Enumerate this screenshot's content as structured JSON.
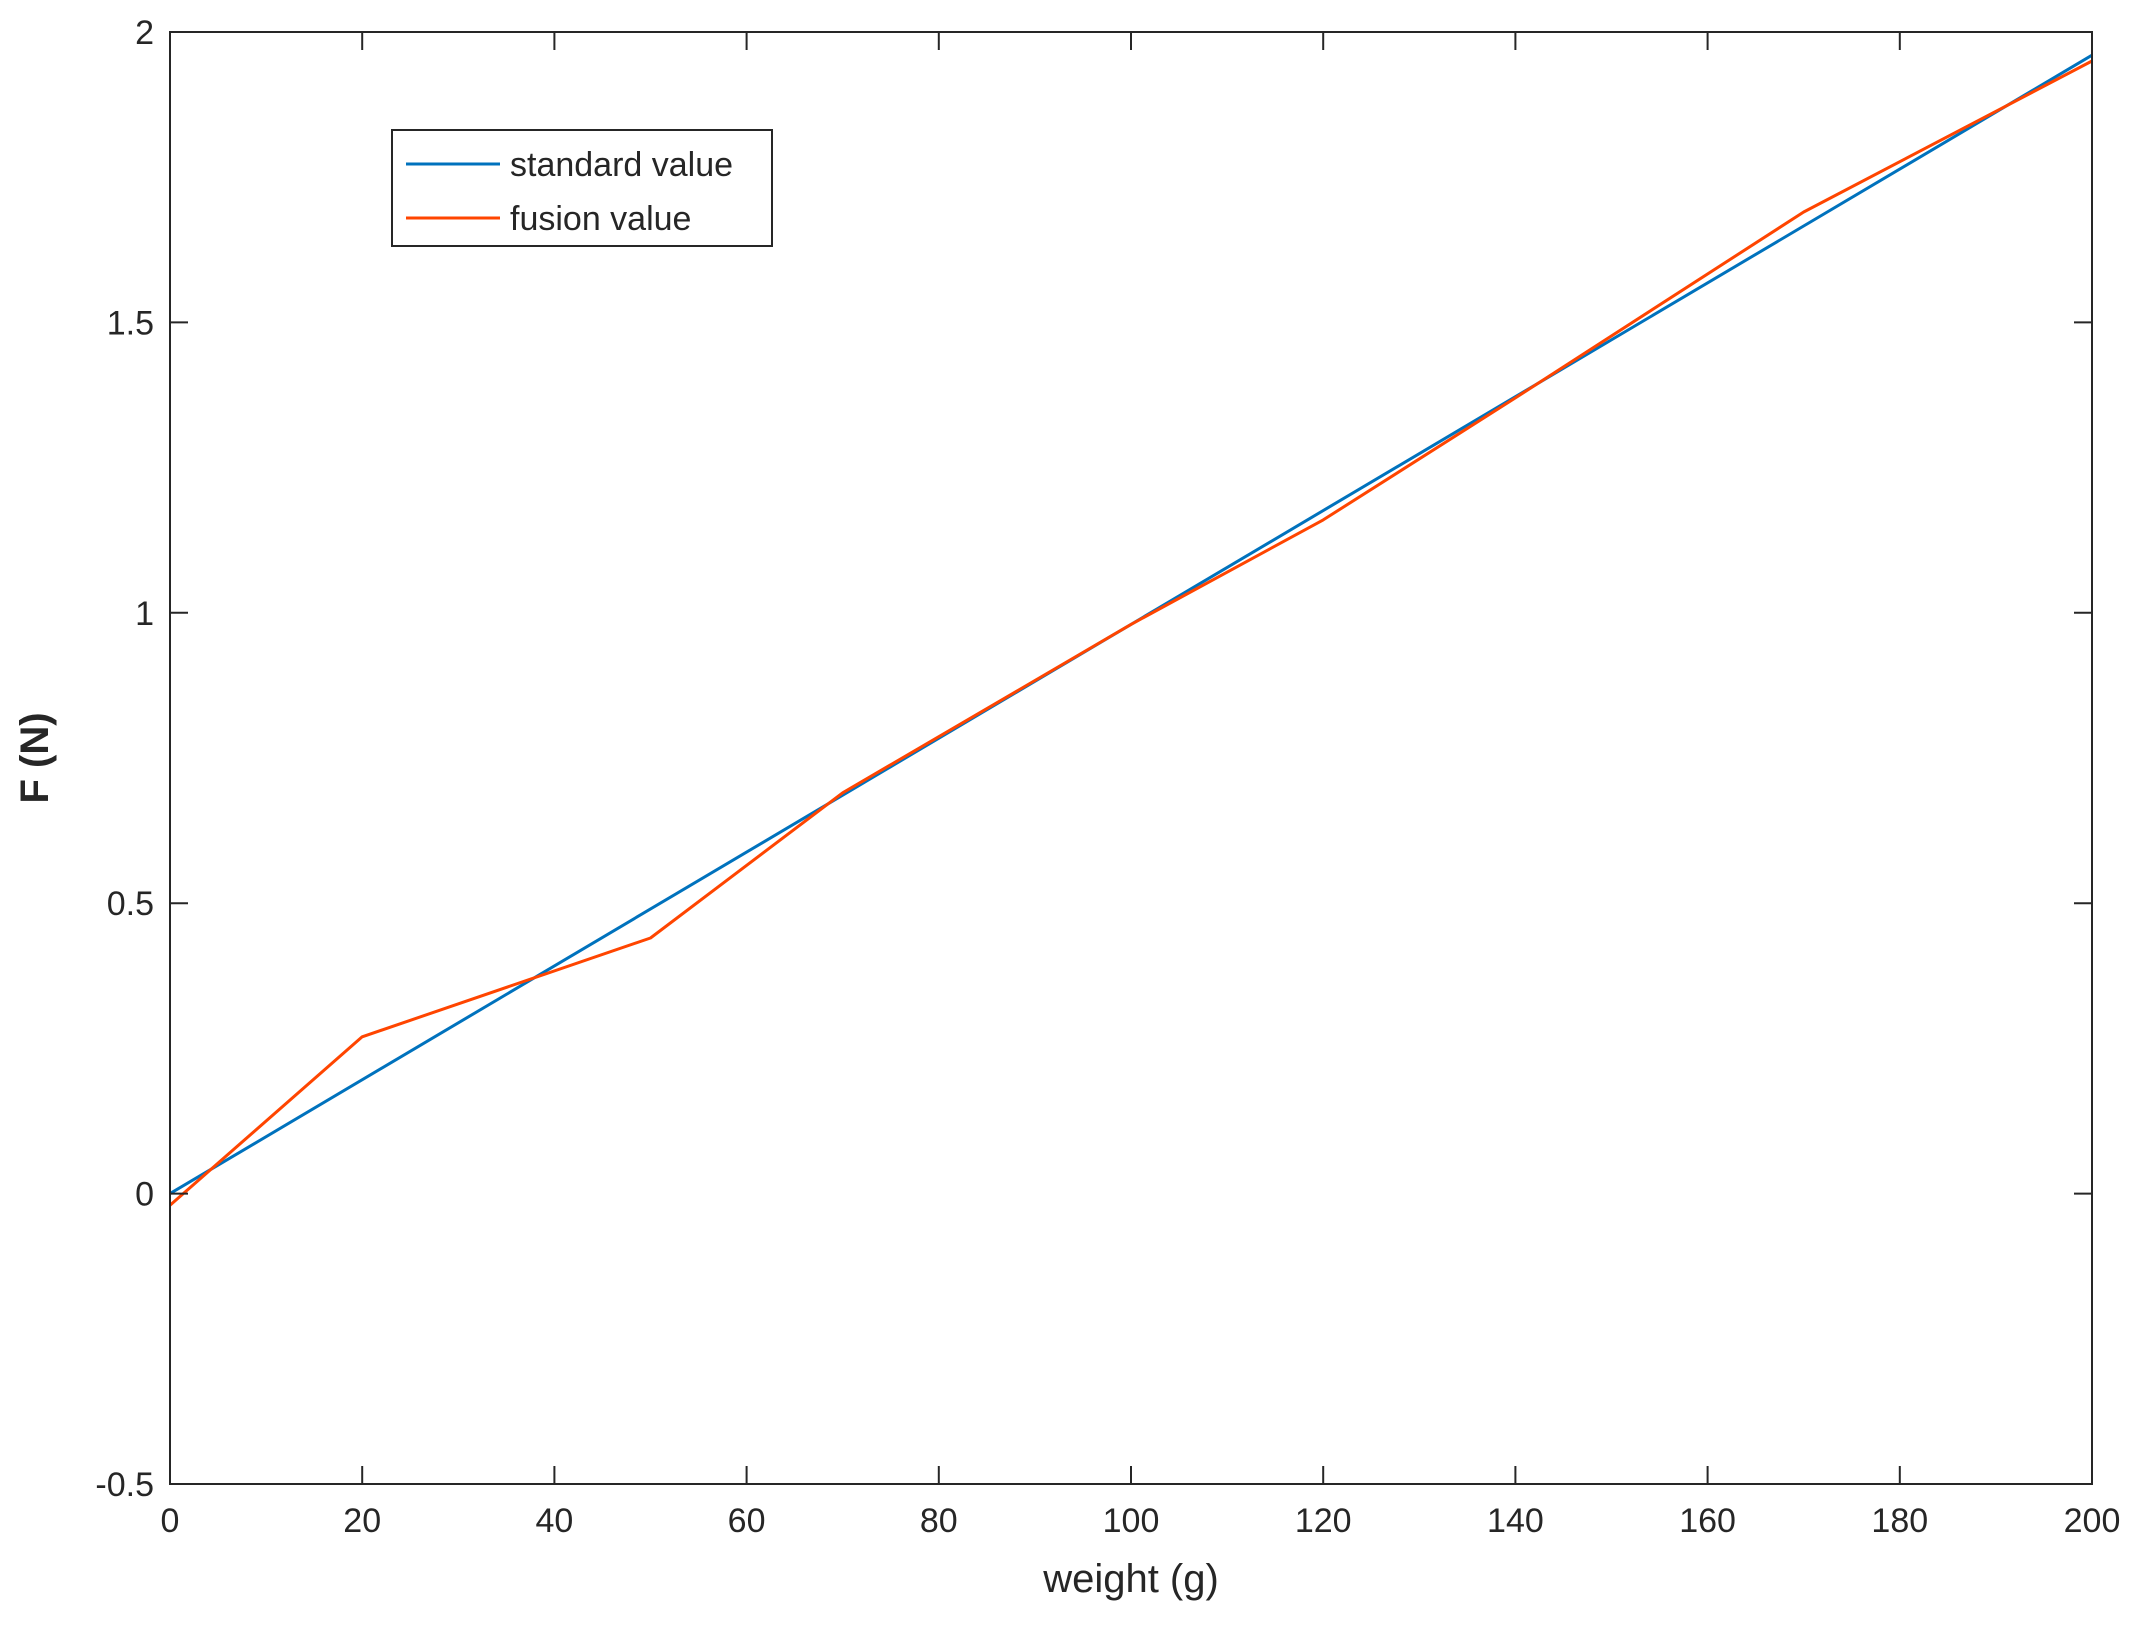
{
  "chart_data": {
    "type": "line",
    "xlabel": "weight (g)",
    "ylabel": "F (N)",
    "xlim": [
      0,
      200
    ],
    "ylim": [
      -0.5,
      2
    ],
    "xticks": [
      0,
      20,
      40,
      60,
      80,
      100,
      120,
      140,
      160,
      180,
      200
    ],
    "yticks": [
      -0.5,
      0,
      0.5,
      1,
      1.5,
      2
    ],
    "grid": false,
    "legend_position": "top-left",
    "series": [
      {
        "name": "standard value",
        "color": "#0072BD",
        "x": [
          0,
          200
        ],
        "y": [
          0,
          1.96
        ]
      },
      {
        "name": "fusion value",
        "color": "#FF4500",
        "x": [
          0,
          20,
          50,
          70,
          100,
          120,
          140,
          170,
          200
        ],
        "y": [
          -0.02,
          0.27,
          0.44,
          0.69,
          0.98,
          1.16,
          1.37,
          1.69,
          1.95
        ]
      }
    ]
  }
}
